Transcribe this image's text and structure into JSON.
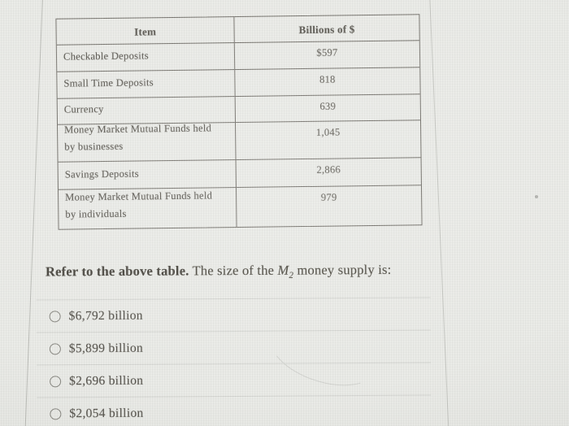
{
  "table": {
    "headers": [
      "Item",
      "Billions of $"
    ],
    "rows": [
      {
        "item": "Checkable Deposits",
        "value": "$597"
      },
      {
        "item": "Small Time Deposits",
        "value": "818"
      },
      {
        "item": "Currency",
        "value": "639"
      },
      {
        "item": "Money Market Mutual Funds held by businesses",
        "value": "1,045"
      },
      {
        "item": "Savings Deposits",
        "value": "2,866"
      },
      {
        "item": "Money Market Mutual Funds held by individuals",
        "value": "979"
      }
    ]
  },
  "question": {
    "bold": "Refer to the above table.",
    "pre_math": " The size of the ",
    "math_base": "M",
    "math_sub": "2",
    "post_math": " money supply is:"
  },
  "options": [
    {
      "label": "$6,792 billion"
    },
    {
      "label": "$5,899 billion"
    },
    {
      "label": "$2,696 billion"
    },
    {
      "label": "$2,054 billion"
    }
  ],
  "colors": {
    "background": "#e8e9e5",
    "ink": "#55524b",
    "table-border": "#6b6862",
    "divider": "#d2d3cf",
    "question-ink": "#454239",
    "option-ink": "#4f4c45",
    "radio-border": "#82817b",
    "value-ink": "#625f58"
  }
}
